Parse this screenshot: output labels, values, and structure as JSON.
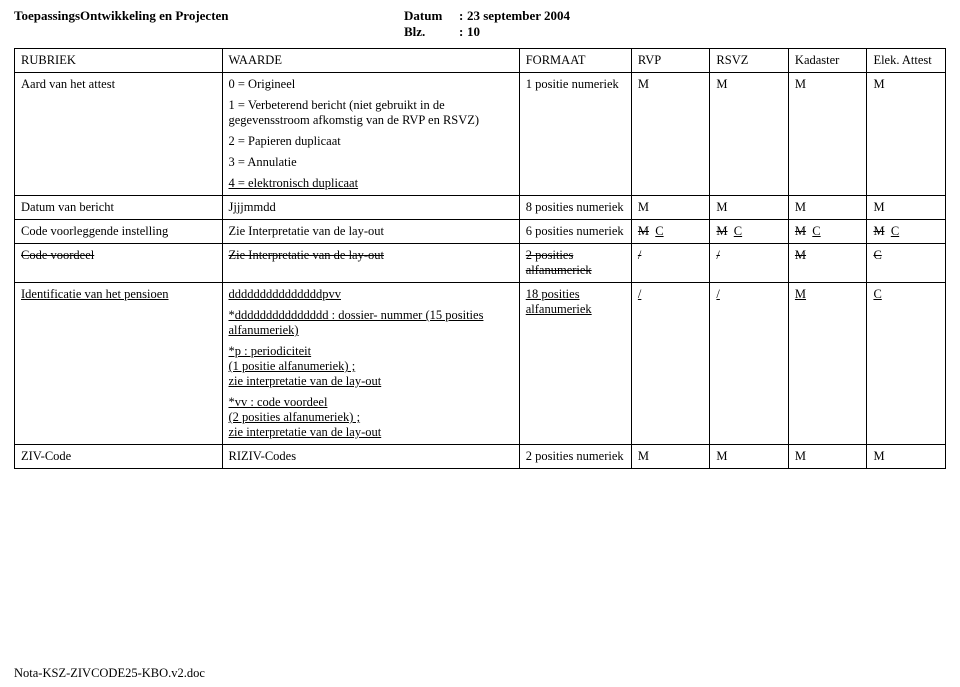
{
  "header": {
    "left": "ToepassingsOntwikkeling en Projecten",
    "datum_label": "Datum",
    "datum_value": "23 september 2004",
    "blz_label": "Blz.",
    "blz_value": "10",
    "colon": ":"
  },
  "columns": {
    "rubriek": "RUBRIEK",
    "waarde": "WAARDE",
    "formaat": "FORMAAT",
    "rvp": "RVP",
    "rsvz": "RSVZ",
    "kadaster": "Kadaster",
    "elek": "Elek. Attest"
  },
  "rows": {
    "aard": {
      "rubriek": "Aard van het attest",
      "w0": "0 = Origineel",
      "w1": "1 = Verbeterend bericht (niet gebruikt in de gegevensstroom afkomstig van de RVP en RSVZ)",
      "w2": "2 = Papieren duplicaat",
      "w3": "3 = Annulatie",
      "w4": "4 = elektronisch duplicaat",
      "formaat": "1 positie numeriek",
      "rvp": "M",
      "rsvz": "M",
      "kadaster": "M",
      "elek": "M"
    },
    "datum": {
      "rubriek": "Datum van bericht",
      "waarde": "Jjjjmmdd",
      "formaat": "8 posities numeriek",
      "rvp": "M",
      "rsvz": "M",
      "kadaster": "M",
      "elek": "M"
    },
    "codevoor": {
      "rubriek": "Code voorleggende instelling",
      "waarde": "Zie Interpretatie van de lay-out",
      "formaat": "6 posities numeriek",
      "rvp_m": "M",
      "rvp_c": "C",
      "rsvz_m": "M",
      "rsvz_c": "C",
      "kad_m": "M",
      "kad_c": "C",
      "elek_m": "M",
      "elek_c": "C"
    },
    "codevoordeel": {
      "rubriek": "Code voordeel",
      "waarde": "Zie Interpretatie van de lay-out",
      "formaat": "2 posities alfanumeriek",
      "rvp": "/",
      "rsvz": "/",
      "kadaster": "M",
      "elek": "C"
    },
    "ident": {
      "rubriek": "Identificatie van het pensioen",
      "w_main": "dddddddddddddddpvv",
      "w_d": "*ddddddddddddddd : dossier- nummer (15 posities alfanumeriek)",
      "w_p": "*p : periodiciteit\n(1 positie alfanumeriek) ;\nzie interpretatie van de lay-out",
      "w_v": "*vv : code voordeel\n(2 posities alfanumeriek) ;\nzie interpretatie van de lay-out",
      "formaat": "18 posities alfanumeriek",
      "rvp": "/",
      "rsvz": "/",
      "kadaster": "M",
      "elek": "C"
    },
    "ziv": {
      "rubriek": "ZIV-Code",
      "waarde": "RIZIV-Codes",
      "formaat": "2 posities numeriek",
      "rvp": "M",
      "rsvz": "M",
      "kadaster": "M",
      "elek": "M"
    }
  },
  "footer": "Nota-KSZ-ZIVCODE25-KBO.v2.doc"
}
